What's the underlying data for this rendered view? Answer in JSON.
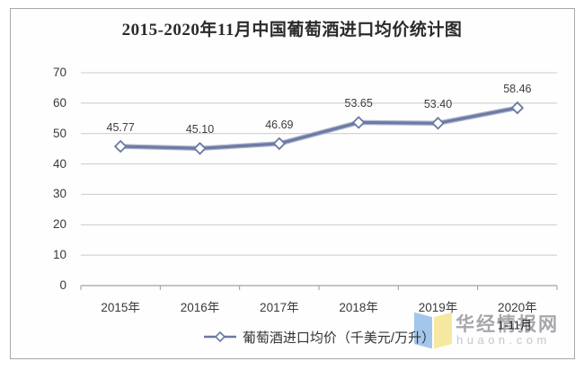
{
  "page": {
    "background": "#ffffff"
  },
  "chart": {
    "title": "2015-2020年11月中国葡萄酒进口均价统计图",
    "legend_label": "葡萄酒进口均价（千美元/万升）",
    "x_note": "1-11月"
  },
  "chart_data": {
    "type": "line",
    "title": "2015-2020年11月中国葡萄酒进口均价统计图",
    "categories": [
      "2015年",
      "2016年",
      "2017年",
      "2018年",
      "2019年",
      "2020年"
    ],
    "values": [
      45.77,
      45.1,
      46.69,
      53.65,
      53.4,
      58.46
    ],
    "series": [
      {
        "name": "葡萄酒进口均价（千美元/万升）",
        "values": [
          45.77,
          45.1,
          46.69,
          53.65,
          53.4,
          58.46
        ]
      }
    ],
    "xlabel": "",
    "ylabel": "",
    "ylim": [
      0,
      70
    ],
    "yticks": [
      0,
      10,
      20,
      30,
      40,
      50,
      60,
      70
    ],
    "grid": true,
    "legend_position": "bottom",
    "marker": "diamond-open",
    "x_note_under_last_category": "1-11月"
  },
  "watermark": {
    "brand": "华经情报网",
    "domain": "huaon.com",
    "logo": "open-book-ribbons-icon"
  },
  "colors": {
    "line": "#6b7aa3",
    "line_halo": "#aab2ca",
    "marker_fill": "#ffffff",
    "grid": "#c9c9c9",
    "axis": "#b0b0b0",
    "tick": "#9a9a9a",
    "text": "#3a3a3a",
    "frame_border": "#a8a8a8",
    "logo_blue": "#a4c6ec",
    "logo_yellow": "#f6e8a0",
    "watermark_text": "#919498",
    "watermark_domain": "#c3c7cc"
  }
}
